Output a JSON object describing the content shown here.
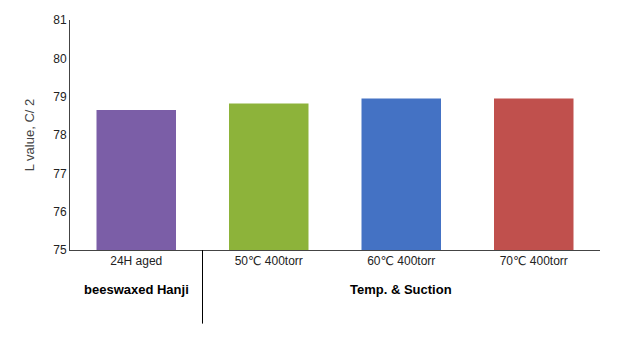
{
  "chart_data": {
    "type": "bar",
    "ylabel": "L value, C/ 2",
    "categories": [
      "24H aged",
      "50℃ 400torr",
      "60℃ 400torr",
      "70℃ 400torr"
    ],
    "values": [
      78.65,
      78.82,
      78.95,
      78.95
    ],
    "colors": [
      "#7B5EA7",
      "#8DB33A",
      "#4472C4",
      "#C0504D"
    ],
    "ylim": [
      75,
      81
    ],
    "yticks": [
      75,
      76,
      77,
      78,
      79,
      80,
      81
    ],
    "annotations": [
      "beeswaxed Hanji",
      "Temp. & Suction"
    ],
    "grid": false
  }
}
